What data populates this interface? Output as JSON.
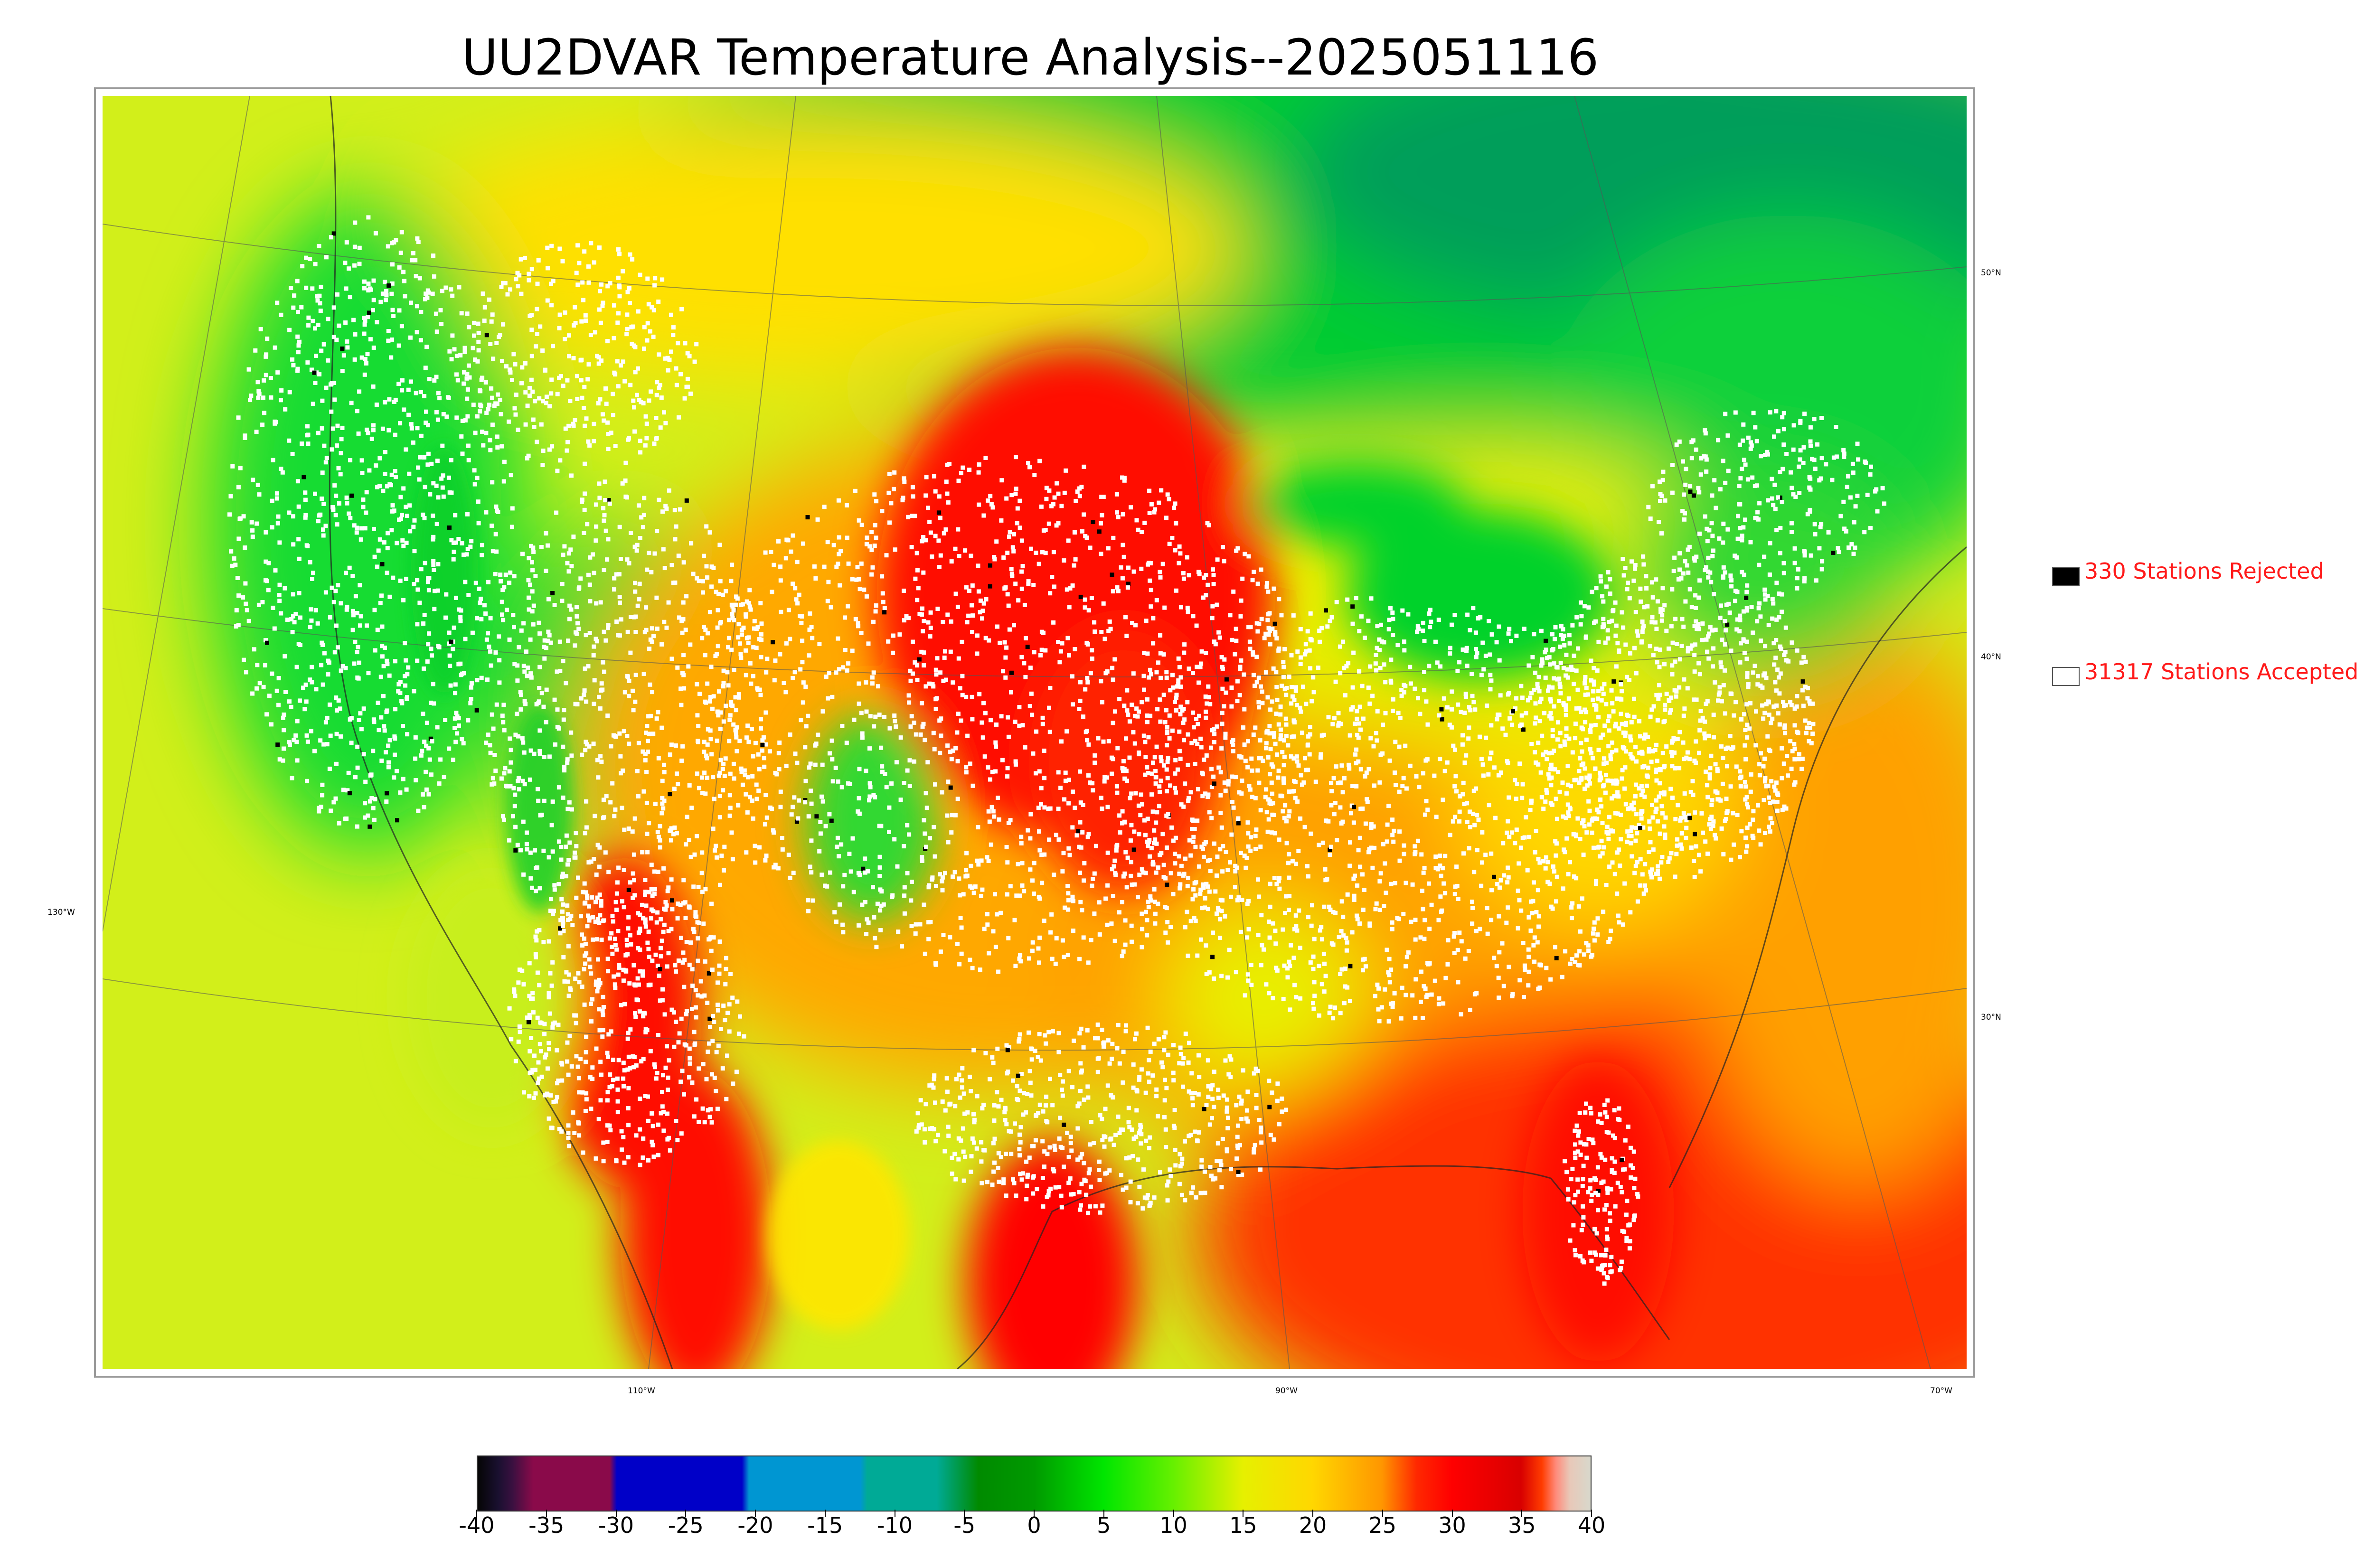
{
  "title": "UU2DVAR Temperature Analysis--2025051116",
  "latitude_labels": [
    "50°N",
    "40°N",
    "30°N"
  ],
  "longitude_labels": [
    "130°W",
    "110°W",
    "90°W",
    "70°W"
  ],
  "legend": {
    "rejected": {
      "label": "330 Stations Rejected",
      "swatch_color": "#000000"
    },
    "accepted": {
      "label": "31317 Stations Accepted",
      "swatch_color": "#ffffff"
    },
    "text_color": "#ff1a1a"
  },
  "colorbar": {
    "labels": [
      "-40",
      "-35",
      "-30",
      "-25",
      "-20",
      "-15",
      "-10",
      "-5",
      "0",
      "5",
      "10",
      "15",
      "20",
      "25",
      "30",
      "35",
      "40"
    ],
    "range": [
      -40,
      40
    ],
    "stops": [
      {
        "value": -40,
        "color": "#050505"
      },
      {
        "value": -38.5,
        "color": "#1a1030"
      },
      {
        "value": -37.5,
        "color": "#3a1040"
      },
      {
        "value": -36,
        "color": "#8a0a4a"
      },
      {
        "value": -30.5,
        "color": "#8a0a4a"
      },
      {
        "value": -30,
        "color": "#0000c8"
      },
      {
        "value": -21,
        "color": "#0000c8"
      },
      {
        "value": -20.5,
        "color": "#0096d2"
      },
      {
        "value": -12.5,
        "color": "#0096d2"
      },
      {
        "value": -12,
        "color": "#00aa96"
      },
      {
        "value": -7,
        "color": "#00aa96"
      },
      {
        "value": -4,
        "color": "#008a00"
      },
      {
        "value": 0,
        "color": "#009a00"
      },
      {
        "value": 5,
        "color": "#00e600"
      },
      {
        "value": 10,
        "color": "#66f000"
      },
      {
        "value": 15,
        "color": "#e6f000"
      },
      {
        "value": 20,
        "color": "#ffd700"
      },
      {
        "value": 25,
        "color": "#ff9600"
      },
      {
        "value": 27.5,
        "color": "#ff2800"
      },
      {
        "value": 30,
        "color": "#ff0000"
      },
      {
        "value": 35,
        "color": "#d80000"
      },
      {
        "value": 36.5,
        "color": "#ff3c00"
      },
      {
        "value": 37.5,
        "color": "#ff8a7a"
      },
      {
        "value": 38.5,
        "color": "#e8c8b8"
      },
      {
        "value": 40,
        "color": "#d8d8cc"
      }
    ]
  },
  "colors": {
    "ocean_pacific": "#c8ef1e",
    "ocean_gulf": "#ff3c00",
    "canada_north": "#00c832",
    "hudson_region": "#00a050",
    "great_lakes": "#00d22a",
    "hot_core": "#ff0a00",
    "warm": "#ffa000",
    "mild": "#ffe600",
    "cool_mountain": "#12d22a",
    "station_accepted": "#ffffff",
    "station_rejected": "#000000"
  }
}
